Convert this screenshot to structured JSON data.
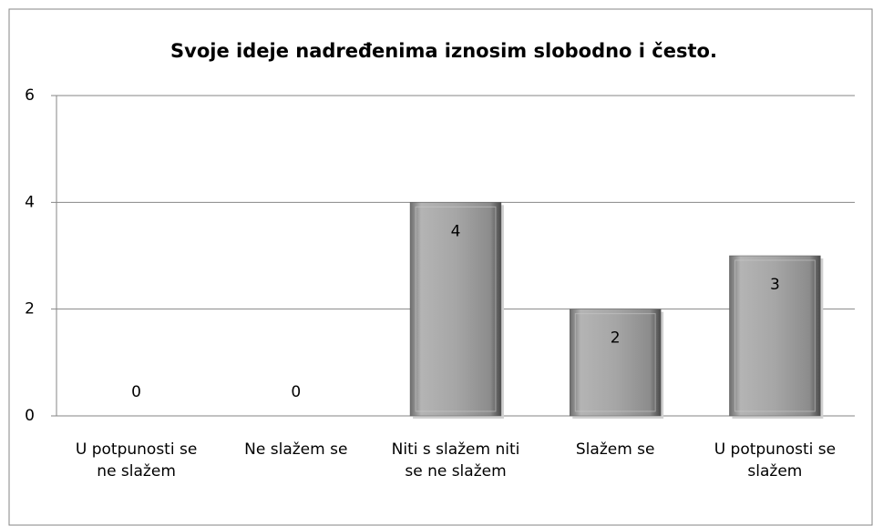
{
  "chart_data": {
    "type": "bar",
    "title": "Svoje ideje nadređenima iznosim slobodno i često.",
    "categories": [
      "U potpunosti se ne slažem",
      "Ne slažem se",
      "Niti s slažem niti se ne slažem",
      "Slažem se",
      "U potpunosti se slažem"
    ],
    "values": [
      0,
      0,
      4,
      2,
      3
    ],
    "color": "#a6a6a6",
    "ylim": [
      0,
      6
    ],
    "yticks": [
      0,
      2,
      4,
      6
    ],
    "grid": true
  }
}
